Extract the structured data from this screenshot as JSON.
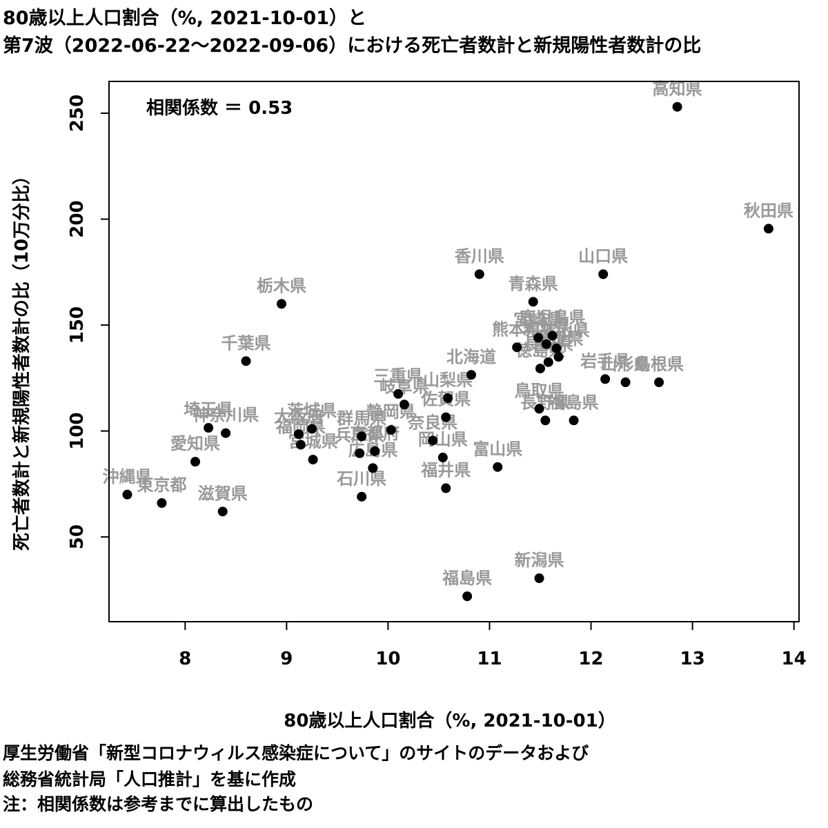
{
  "chart_data": {
    "type": "scatter",
    "title_line1": "80歳以上人口割合（%, 2021-10-01）と",
    "title_line2": "第7波（2022-06-22～2022-09-06）における死亡者数計と新規陽性者数計の比",
    "xlabel": "80歳以上人口割合（%, 2021-10-01）",
    "ylabel": "死亡者数計と新規陽性者数計の比（10万分比）",
    "annotation": "相関係数 ＝ 0.53",
    "xlim": [
      7.25,
      14.05
    ],
    "ylim": [
      10,
      265
    ],
    "xticks": [
      8,
      9,
      10,
      11,
      12,
      13,
      14
    ],
    "yticks": [
      50,
      100,
      150,
      200,
      250
    ],
    "grid": false,
    "point_color": "#000000",
    "label_color": "#999999",
    "points": [
      {
        "name": "高知県",
        "x": 12.85,
        "y": 253
      },
      {
        "name": "秋田県",
        "x": 13.75,
        "y": 195.5
      },
      {
        "name": "香川県",
        "x": 10.9,
        "y": 174
      },
      {
        "name": "山口県",
        "x": 12.12,
        "y": 174
      },
      {
        "name": "栃木県",
        "x": 8.95,
        "y": 160
      },
      {
        "name": "青森県",
        "x": 11.43,
        "y": 161
      },
      {
        "name": "熊本県",
        "x": 11.27,
        "y": 139.5
      },
      {
        "name": "宮崎県",
        "x": 11.48,
        "y": 144
      },
      {
        "name": "鹿児島県",
        "x": 11.62,
        "y": 145
      },
      {
        "name": "大分県",
        "x": 11.56,
        "y": 141
      },
      {
        "name": "和歌山県",
        "x": 11.66,
        "y": 139
      },
      {
        "name": "愛媛県",
        "x": 11.68,
        "y": 135
      },
      {
        "name": "長崎県",
        "x": 11.58,
        "y": 132.5
      },
      {
        "name": "徳島県",
        "x": 11.5,
        "y": 129.5
      },
      {
        "name": "千葉県",
        "x": 8.6,
        "y": 133
      },
      {
        "name": "北海道",
        "x": 10.82,
        "y": 126.5
      },
      {
        "name": "岩手県",
        "x": 12.14,
        "y": 124.5
      },
      {
        "name": "山形県",
        "x": 12.34,
        "y": 123
      },
      {
        "name": "島根県",
        "x": 12.67,
        "y": 123
      },
      {
        "name": "三重県",
        "x": 10.1,
        "y": 117.5
      },
      {
        "name": "岐阜県",
        "x": 10.16,
        "y": 112.5
      },
      {
        "name": "山梨県",
        "x": 10.59,
        "y": 115.5
      },
      {
        "name": "佐賀県",
        "x": 10.57,
        "y": 106.5
      },
      {
        "name": "鳥取県",
        "x": 11.49,
        "y": 110.5
      },
      {
        "name": "長野県",
        "x": 11.55,
        "y": 105
      },
      {
        "name": "福島県",
        "x": 11.83,
        "y": 105
      },
      {
        "name": "埼玉県",
        "x": 8.23,
        "y": 101.5
      },
      {
        "name": "神奈川県",
        "x": 8.4,
        "y": 99
      },
      {
        "name": "茨城県",
        "x": 9.25,
        "y": 101
      },
      {
        "name": "大阪府",
        "x": 9.12,
        "y": 98.5
      },
      {
        "name": "福岡県",
        "x": 9.14,
        "y": 93.5
      },
      {
        "name": "宮城県",
        "x": 9.26,
        "y": 86.5
      },
      {
        "name": "群馬県",
        "x": 9.74,
        "y": 97.5
      },
      {
        "name": "兵庫県",
        "x": 9.72,
        "y": 89.5
      },
      {
        "name": "京都府",
        "x": 9.87,
        "y": 90.5
      },
      {
        "name": "広島県",
        "x": 9.85,
        "y": 82.5
      },
      {
        "name": "静岡県",
        "x": 10.03,
        "y": 100.5
      },
      {
        "name": "奈良県",
        "x": 10.44,
        "y": 95.5
      },
      {
        "name": "岡山県",
        "x": 10.54,
        "y": 87.5
      },
      {
        "name": "富山県",
        "x": 11.08,
        "y": 83
      },
      {
        "name": "福井県",
        "x": 10.57,
        "y": 73
      },
      {
        "name": "愛知県",
        "x": 8.1,
        "y": 85.5
      },
      {
        "name": "石川県",
        "x": 9.74,
        "y": 69
      },
      {
        "name": "沖縄県",
        "x": 7.43,
        "y": 70
      },
      {
        "name": "東京都",
        "x": 7.77,
        "y": 66
      },
      {
        "name": "滋賀県",
        "x": 8.37,
        "y": 62
      },
      {
        "name": "新潟県",
        "x": 11.49,
        "y": 30.5
      },
      {
        "name": "福島県",
        "x": 10.78,
        "y": 22
      }
    ]
  },
  "notes": [
    "厚生労働省「新型コロナウィルス感染症について」のサイトのデータおよび",
    "総務省統計局「人口推計」を基に作成",
    "注：相関係数は参考までに算出したもの"
  ]
}
